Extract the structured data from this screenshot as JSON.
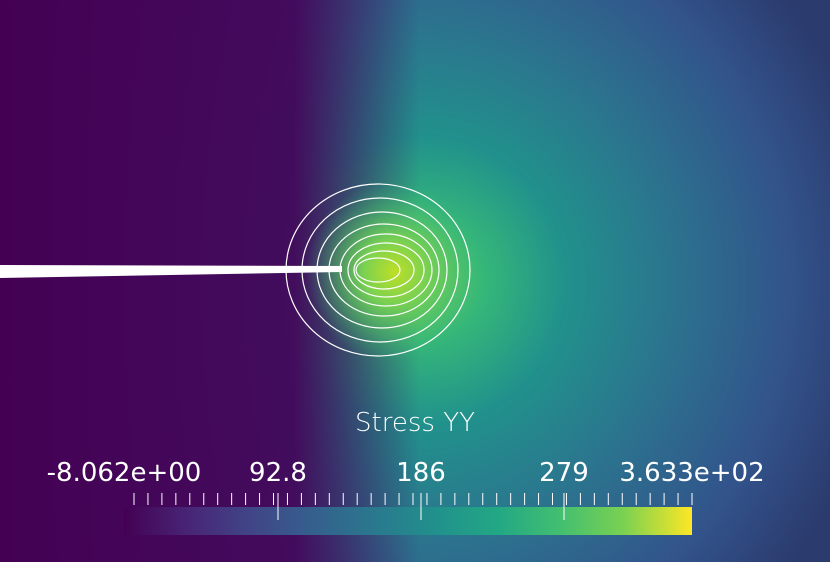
{
  "scalar_bar": {
    "title": "Stress YY",
    "labels": {
      "min": "-8.062e+00",
      "t1": "92.8",
      "t2": "186",
      "t3": "279",
      "max": "3.633e+02"
    },
    "range": [
      -8.062,
      363.3
    ],
    "colormap": "viridis"
  },
  "colors": {
    "background": "#2b3b6e",
    "contour": "#ffffff",
    "crack": "#ffffff"
  }
}
